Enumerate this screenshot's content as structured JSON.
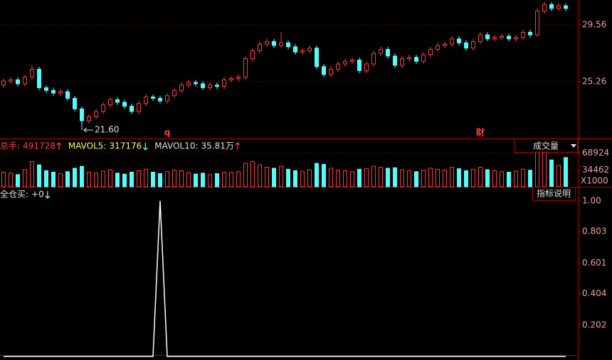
{
  "chart_data": [
    {
      "type": "candlestick",
      "open": [
        25.0,
        25.3,
        25.4,
        25.1,
        25.6,
        26.2,
        24.8,
        24.6,
        24.4,
        24.5,
        24.0,
        23.2,
        22.3,
        22.6,
        23.0,
        23.5,
        23.9,
        23.7,
        23.4,
        23.0,
        23.6,
        24.1,
        24.0,
        23.8,
        24.2,
        24.6,
        25.0,
        25.2,
        25.1,
        24.8,
        25.0,
        24.9,
        25.4,
        25.5,
        25.6,
        27.0,
        27.6,
        28.1,
        28.3,
        28.0,
        28.2,
        27.9,
        27.5,
        27.6,
        27.8,
        26.4,
        25.8,
        26.2,
        26.6,
        26.8,
        26.9,
        26.1,
        26.6,
        27.4,
        27.7,
        27.2,
        26.5,
        27.0,
        27.1,
        26.8,
        27.3,
        27.7,
        28.0,
        28.1,
        28.5,
        28.2,
        27.8,
        28.3,
        28.8,
        28.5,
        28.6,
        28.7,
        28.5,
        28.6,
        29.0,
        28.8,
        30.6,
        31.1,
        30.8,
        31.0
      ],
      "high": [
        25.5,
        25.6,
        25.6,
        25.8,
        26.5,
        26.4,
        25.0,
        24.8,
        24.7,
        24.7,
        24.2,
        23.4,
        22.8,
        23.2,
        23.7,
        24.1,
        24.1,
        23.9,
        23.6,
        23.8,
        24.3,
        24.3,
        24.2,
        24.4,
        24.8,
        25.2,
        25.4,
        25.4,
        25.3,
        25.2,
        25.2,
        25.6,
        25.7,
        25.8,
        27.2,
        27.8,
        28.3,
        28.5,
        28.5,
        29.0,
        28.4,
        28.1,
        27.8,
        28.0,
        28.0,
        26.6,
        26.4,
        26.8,
        27.0,
        27.1,
        27.1,
        26.8,
        27.6,
        27.9,
        27.9,
        27.4,
        27.2,
        27.3,
        27.3,
        27.5,
        27.9,
        28.2,
        28.3,
        28.7,
        28.7,
        28.4,
        28.5,
        29.0,
        29.0,
        28.8,
        28.9,
        28.9,
        28.8,
        29.2,
        29.2,
        30.8,
        31.3,
        31.3,
        31.2,
        31.2
      ],
      "low": [
        24.8,
        25.1,
        24.9,
        24.9,
        25.4,
        24.6,
        24.4,
        24.2,
        24.2,
        23.8,
        23.0,
        21.6,
        22.1,
        22.4,
        22.8,
        23.3,
        23.5,
        23.2,
        22.8,
        22.8,
        23.4,
        23.8,
        23.6,
        23.6,
        24.0,
        24.4,
        24.8,
        24.9,
        24.6,
        24.6,
        24.7,
        24.7,
        25.2,
        25.3,
        25.4,
        26.8,
        27.4,
        27.9,
        27.8,
        27.8,
        27.7,
        27.3,
        27.3,
        27.4,
        26.2,
        25.6,
        25.6,
        26.0,
        26.4,
        26.6,
        25.9,
        25.9,
        26.4,
        27.2,
        27.0,
        26.3,
        26.3,
        26.8,
        26.6,
        26.6,
        27.1,
        27.5,
        27.8,
        27.9,
        28.0,
        27.6,
        27.6,
        28.1,
        28.3,
        28.3,
        28.4,
        28.3,
        28.3,
        28.4,
        28.6,
        28.6,
        30.4,
        30.6,
        30.6,
        30.6
      ],
      "close": [
        25.3,
        25.4,
        25.1,
        25.6,
        26.2,
        24.8,
        24.6,
        24.4,
        24.5,
        24.0,
        23.2,
        22.3,
        22.6,
        23.0,
        23.5,
        23.9,
        23.7,
        23.4,
        23.0,
        23.6,
        24.1,
        24.0,
        23.8,
        24.2,
        24.6,
        25.0,
        25.2,
        25.1,
        24.8,
        25.0,
        24.9,
        25.4,
        25.5,
        25.6,
        27.0,
        27.6,
        28.1,
        28.3,
        28.0,
        28.2,
        27.9,
        27.5,
        27.6,
        27.8,
        26.4,
        25.8,
        26.2,
        26.6,
        26.8,
        26.9,
        26.1,
        26.6,
        27.4,
        27.7,
        27.2,
        26.5,
        27.0,
        27.1,
        26.8,
        27.3,
        27.7,
        28.0,
        28.1,
        28.5,
        28.2,
        27.8,
        28.3,
        28.8,
        28.5,
        28.6,
        28.7,
        28.5,
        28.6,
        29.0,
        28.8,
        30.6,
        31.1,
        30.8,
        31.0,
        30.8
      ],
      "up_color": "#ff3c3c",
      "down_color": "#54fcfc",
      "ylim": [
        20.96,
        31.44
      ],
      "yticks": [
        29.56,
        25.26
      ],
      "grid": true,
      "annotations": [
        {
          "text": "21.60",
          "index": 11
        }
      ],
      "markers": [
        {
          "text": "q",
          "index": 23
        },
        {
          "text": "财",
          "index": 67
        }
      ]
    },
    {
      "type": "bar",
      "values": [
        30000,
        28000,
        25000,
        35000,
        52000,
        45000,
        33000,
        30000,
        27000,
        31000,
        38000,
        42000,
        30000,
        28000,
        32000,
        35000,
        28000,
        26000,
        30000,
        33000,
        36000,
        30000,
        27000,
        31000,
        34000,
        33000,
        29000,
        26000,
        28000,
        25000,
        27000,
        30000,
        29000,
        31000,
        48000,
        52000,
        45000,
        40000,
        38000,
        42000,
        36000,
        33000,
        31000,
        35000,
        48000,
        46000,
        38000,
        34000,
        33000,
        31000,
        36000,
        37000,
        42000,
        40000,
        38000,
        39000,
        35000,
        33000,
        31000,
        34000,
        38000,
        36000,
        34000,
        40000,
        37000,
        33000,
        36000,
        40000,
        35000,
        33000,
        31000,
        30000,
        32000,
        36000,
        34000,
        85000,
        70000,
        55000,
        44000,
        60000
      ],
      "ylim": [
        0,
        96200
      ],
      "yticks": [
        68924,
        34462
      ],
      "grid": true,
      "unit_label": "X1000",
      "selector": "成交量",
      "indicators": [
        {
          "label": "总手:",
          "value": "491728",
          "trend": "up",
          "color": "#ff4040"
        },
        {
          "label": "MAVOL5:",
          "value": "317176",
          "trend": "down",
          "color": "#ffff60"
        },
        {
          "label": "MAVOL10:",
          "value": "35.81万",
          "trend": "up",
          "color": "#e0e0e0"
        }
      ]
    },
    {
      "type": "line",
      "values": [
        0,
        0,
        0,
        0,
        0,
        0,
        0,
        0,
        0,
        0,
        0,
        0,
        0,
        0,
        0,
        0,
        0,
        0,
        0,
        0,
        0,
        0,
        1,
        0,
        0,
        0,
        0,
        0,
        0,
        0,
        0,
        0,
        0,
        0,
        0,
        0,
        0,
        0,
        0,
        0,
        0,
        0,
        0,
        0,
        0,
        0,
        0,
        0,
        0,
        0,
        0,
        0,
        0,
        0,
        0,
        0,
        0,
        0,
        0,
        0,
        0,
        0,
        0,
        0,
        0,
        0,
        0,
        0,
        0,
        0,
        0,
        0,
        0,
        0,
        0,
        0,
        0,
        0,
        0,
        0
      ],
      "color": "#ffffff",
      "ylim": [
        0,
        1.082
      ],
      "yticks": [
        {
          "value": 1,
          "label": "1.00"
        },
        0.803,
        0.601,
        0.404,
        0.202
      ],
      "grid": false,
      "help": "指标说明",
      "indicators": [
        {
          "label": "全仓买:",
          "value": "+0",
          "trend": "down",
          "color": "#e0e0e0"
        }
      ]
    }
  ]
}
